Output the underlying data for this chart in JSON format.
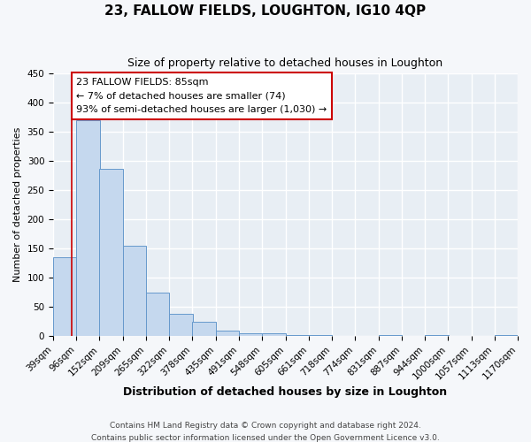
{
  "title": "23, FALLOW FIELDS, LOUGHTON, IG10 4QP",
  "subtitle": "Size of property relative to detached houses in Loughton",
  "xlabel": "Distribution of detached houses by size in Loughton",
  "ylabel": "Number of detached properties",
  "bar_values": [
    135,
    370,
    287,
    155,
    75,
    38,
    25,
    10,
    5,
    5,
    2,
    2,
    0,
    0,
    2,
    0,
    2,
    0,
    0,
    2
  ],
  "bin_edges": [
    39,
    96,
    152,
    209,
    265,
    322,
    378,
    435,
    491,
    548,
    605,
    661,
    718,
    774,
    831,
    887,
    944,
    1000,
    1057,
    1113,
    1170
  ],
  "bin_labels": [
    "39sqm",
    "96sqm",
    "152sqm",
    "209sqm",
    "265sqm",
    "322sqm",
    "378sqm",
    "435sqm",
    "491sqm",
    "548sqm",
    "605sqm",
    "661sqm",
    "718sqm",
    "774sqm",
    "831sqm",
    "887sqm",
    "944sqm",
    "1000sqm",
    "1057sqm",
    "1113sqm",
    "1170sqm"
  ],
  "bar_color": "#c5d8ee",
  "bar_edge_color": "#6699cc",
  "ylim": [
    0,
    450
  ],
  "yticks": [
    0,
    50,
    100,
    150,
    200,
    250,
    300,
    350,
    400,
    450
  ],
  "property_size": 85,
  "annotation_title": "23 FALLOW FIELDS: 85sqm",
  "annotation_line1": "← 7% of detached houses are smaller (74)",
  "annotation_line2": "93% of semi-detached houses are larger (1,030) →",
  "annotation_box_color": "#ffffff",
  "annotation_box_edge": "#cc0000",
  "vline_color": "#cc0000",
  "footer1": "Contains HM Land Registry data © Crown copyright and database right 2024.",
  "footer2": "Contains public sector information licensed under the Open Government Licence v3.0.",
  "plot_bg_color": "#e8eef4",
  "fig_bg_color": "#f5f7fa",
  "grid_color": "#ffffff",
  "title_fontsize": 11,
  "subtitle_fontsize": 9,
  "xlabel_fontsize": 9,
  "ylabel_fontsize": 8,
  "tick_fontsize": 7.5
}
